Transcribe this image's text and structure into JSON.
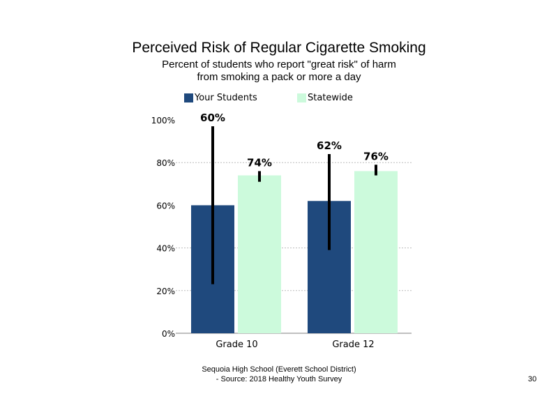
{
  "chart_data": {
    "type": "bar",
    "title": "Perceived Risk of Regular Cigarette Smoking",
    "subtitle": [
      "Percent of students who report \"great risk\" of harm",
      "from smoking a pack or more a day"
    ],
    "categories": [
      "Grade 10",
      "Grade 12"
    ],
    "series": [
      {
        "name": "Your Students",
        "values": [
          60,
          62
        ],
        "labels": [
          "60%",
          "62%"
        ],
        "error_low": [
          23,
          39
        ],
        "error_high": [
          97,
          84
        ],
        "color": "#1f497d"
      },
      {
        "name": "Statewide",
        "values": [
          74,
          76
        ],
        "labels": [
          "74%",
          "76%"
        ],
        "error_low": [
          71,
          74
        ],
        "error_high": [
          76,
          79
        ],
        "color": "#ccfadc"
      }
    ],
    "yticks": [
      "0%",
      "20%",
      "40%",
      "60%",
      "80%",
      "100%"
    ],
    "ylim": [
      0,
      100
    ],
    "grid": "dashed horizontal at 20%, 40%, 80%",
    "legend": "top"
  },
  "footer": {
    "line1": "Sequoia High School (Everett School District)",
    "line2": "- Source: 2018 Healthy Youth Survey",
    "page_number": "30"
  }
}
